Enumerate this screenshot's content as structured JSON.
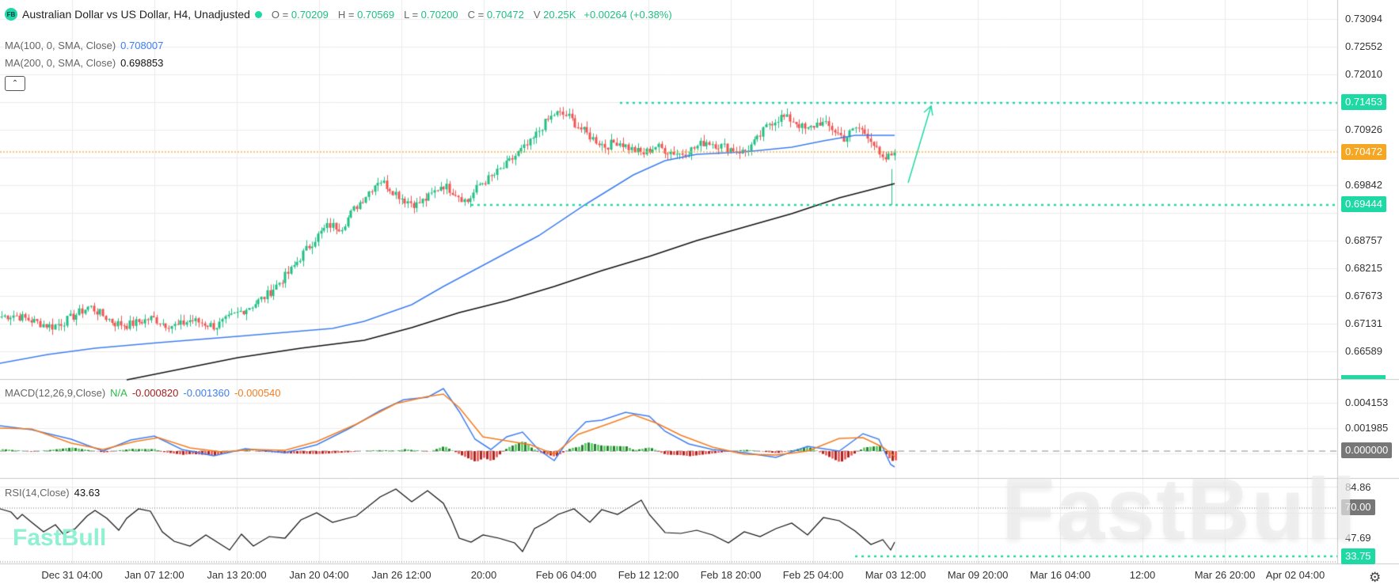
{
  "header": {
    "logo": "FB",
    "title": "Australian Dollar vs US Dollar, H4, Unadjusted",
    "status_dot_color": "#1ed9a4",
    "ohlc": {
      "o_label": "O =",
      "o": "0.70209",
      "h_label": "H =",
      "h": "0.70569",
      "l_label": "L =",
      "l": "0.70200",
      "c_label": "C =",
      "c": "0.70472",
      "v_label": "V",
      "v": "20.25K",
      "change": "+0.00264 (+0.38%)"
    }
  },
  "indicators": {
    "ma100": {
      "label": "MA(100, 0, SMA, Close)",
      "value": "0.708007",
      "color": "#3d7ef2"
    },
    "ma200": {
      "label": "MA(200, 0, SMA, Close)",
      "value": "0.698853",
      "color": "#111111"
    },
    "collapse_icon": "chevron-up-icon",
    "macd": {
      "label": "MACD(12,26,9,Close)",
      "na": "N/A",
      "hist": "-0.000820",
      "macd": "-0.001360",
      "signal": "-0.000540"
    },
    "rsi": {
      "label": "RSI(14,Close)",
      "value": "43.63"
    }
  },
  "price_axis": {
    "ticks": [
      "0.73094",
      "0.72552",
      "0.72010",
      "0.71453",
      "0.70926",
      "0.70472",
      "0.69842",
      "0.69444",
      "0.68757",
      "0.68215",
      "0.67673",
      "0.67131",
      "0.66589"
    ],
    "resistance_tag": "0.71453",
    "current_tag": "0.70472",
    "support_tag": "0.69444"
  },
  "macd_axis": {
    "ticks": [
      "0.004153",
      "0.001985"
    ],
    "zero_tag": "0.000000"
  },
  "rsi_axis": {
    "ticks": [
      "84.86",
      "47.69"
    ],
    "level_tag": "70.00",
    "low_tag": "33.75"
  },
  "x_axis": {
    "labels": [
      "Dec 31 04:00",
      "Jan 07 12:00",
      "Jan 13 20:00",
      "Jan 20 04:00",
      "Jan 26 12:00",
      "20:00",
      "Feb 06 04:00",
      "Feb 12 12:00",
      "Feb 18 20:00",
      "Feb 25 04:00",
      "Mar 03 12:00",
      "Mar 09 20:00",
      "Mar 16 04:00",
      "12:00",
      "Mar 26 20:00",
      "Apr 02 04:00"
    ]
  },
  "watermark": "FastBull",
  "colors": {
    "up": "#1fbf83",
    "down": "#f05350",
    "accent": "#1ed9a4",
    "current": "#f5a623",
    "ma100": "#3d7ef2",
    "ma200": "#111111",
    "macd": "#3d7ef2",
    "signal": "#f57c1f"
  },
  "chart_data": {
    "type": "candlestick",
    "title": "Australian Dollar vs US Dollar, H4, Unadjusted",
    "ylim": [
      0.663,
      0.733
    ],
    "x_ticks": [
      "Dec 31 04:00",
      "Jan 07 12:00",
      "Jan 13 20:00",
      "Jan 20 04:00",
      "Jan 26 12:00",
      "20:00",
      "Feb 06 04:00",
      "Feb 12 12:00",
      "Feb 18 20:00",
      "Feb 25 04:00",
      "Mar 03 12:00"
    ],
    "close_path": [
      0.6725,
      0.6728,
      0.672,
      0.6712,
      0.6705,
      0.6715,
      0.673,
      0.6745,
      0.6728,
      0.6712,
      0.6708,
      0.6715,
      0.6722,
      0.671,
      0.6706,
      0.6718,
      0.6712,
      0.6705,
      0.672,
      0.6735,
      0.6748,
      0.6765,
      0.679,
      0.6815,
      0.685,
      0.688,
      0.6905,
      0.69,
      0.6935,
      0.6965,
      0.6995,
      0.6975,
      0.6955,
      0.6945,
      0.696,
      0.6985,
      0.697,
      0.695,
      0.6985,
      0.7,
      0.702,
      0.7045,
      0.7065,
      0.71,
      0.7125,
      0.712,
      0.7095,
      0.7075,
      0.706,
      0.707,
      0.7055,
      0.7045,
      0.706,
      0.705,
      0.7045,
      0.7055,
      0.707,
      0.7062,
      0.7055,
      0.7048,
      0.707,
      0.7105,
      0.7118,
      0.711,
      0.709,
      0.7108,
      0.7095,
      0.7075,
      0.7098,
      0.708,
      0.703,
      0.7047
    ],
    "ma100_end": 0.708007,
    "ma200_end": 0.698853,
    "resistance": 0.71453,
    "support": 0.69444,
    "current": 0.70472,
    "macd": {
      "macd": -0.00136,
      "signal": -0.00054,
      "hist": -0.00082
    },
    "rsi": {
      "value": 43.63,
      "upper": 70,
      "marker": 33.75
    }
  }
}
